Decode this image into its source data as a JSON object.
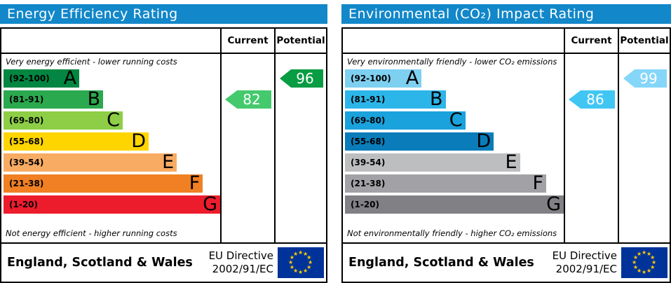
{
  "accent": {
    "header_bg": "#1287c9",
    "border": "#000000",
    "eu_flag_bg": "#003399",
    "eu_star_color": "#ffcc00"
  },
  "panels": [
    {
      "title": "Energy Efficiency Rating",
      "columns": {
        "current": "Current",
        "potential": "Potential"
      },
      "top_note": "Very energy efficient - lower running costs",
      "bottom_note": "Not energy efficient - higher running costs",
      "bands": [
        {
          "range": "(92-100)",
          "letter": "A",
          "color": "#028641",
          "width_pct": 35
        },
        {
          "range": "(81-91)",
          "letter": "B",
          "color": "#2ba94e",
          "width_pct": 46
        },
        {
          "range": "(69-80)",
          "letter": "C",
          "color": "#8dce46",
          "width_pct": 55
        },
        {
          "range": "(55-68)",
          "letter": "D",
          "color": "#ffd500",
          "width_pct": 67
        },
        {
          "range": "(39-54)",
          "letter": "E",
          "color": "#f8ab62",
          "width_pct": 80
        },
        {
          "range": "(21-38)",
          "letter": "F",
          "color": "#f08023",
          "width_pct": 92
        },
        {
          "range": "(1-20)",
          "letter": "G",
          "color": "#ed1c2d",
          "width_pct": 100
        }
      ],
      "current": {
        "value": "82",
        "band_index": 1,
        "color": "#44ca6d"
      },
      "potential": {
        "value": "96",
        "band_index": 0,
        "color": "#089c43"
      },
      "footer": {
        "region": "England, Scotland & Wales",
        "directive_line1": "EU Directive",
        "directive_line2": "2002/91/EC"
      }
    },
    {
      "title": "Environmental (CO₂) Impact Rating",
      "columns": {
        "current": "Current",
        "potential": "Potential"
      },
      "top_note": "Very environmentally friendly - lower CO₂ emissions",
      "bottom_note": "Not environmentally friendly - higher CO₂ emissions",
      "bands": [
        {
          "range": "(92-100)",
          "letter": "A",
          "color": "#7ed0f1",
          "width_pct": 35
        },
        {
          "range": "(81-91)",
          "letter": "B",
          "color": "#2cb5e9",
          "width_pct": 46
        },
        {
          "range": "(69-80)",
          "letter": "C",
          "color": "#19a2dc",
          "width_pct": 55
        },
        {
          "range": "(55-68)",
          "letter": "D",
          "color": "#0a7cba",
          "width_pct": 68
        },
        {
          "range": "(39-54)",
          "letter": "E",
          "color": "#bdbec0",
          "width_pct": 80
        },
        {
          "range": "(21-38)",
          "letter": "F",
          "color": "#a2a2a6",
          "width_pct": 92
        },
        {
          "range": "(1-20)",
          "letter": "G",
          "color": "#808085",
          "width_pct": 100
        }
      ],
      "current": {
        "value": "86",
        "band_index": 1,
        "color": "#41c6f3"
      },
      "potential": {
        "value": "99",
        "band_index": 0,
        "color": "#85d6f9"
      },
      "footer": {
        "region": "England, Scotland & Wales",
        "directive_line1": "EU Directive",
        "directive_line2": "2002/91/EC"
      }
    }
  ],
  "chart_data": [
    {
      "type": "bar",
      "title": "Energy Efficiency Rating",
      "categories": [
        "A (92-100)",
        "B (81-91)",
        "C (69-80)",
        "D (55-68)",
        "E (39-54)",
        "F (21-38)",
        "G (1-20)"
      ],
      "series": [
        {
          "name": "Current",
          "values": [
            82
          ],
          "band": "B"
        },
        {
          "name": "Potential",
          "values": [
            96
          ],
          "band": "A"
        }
      ],
      "scale_range": [
        1,
        100
      ],
      "annotations": [
        "Very energy efficient - lower running costs",
        "Not energy efficient - higher running costs",
        "England, Scotland & Wales",
        "EU Directive 2002/91/EC"
      ]
    },
    {
      "type": "bar",
      "title": "Environmental (CO₂) Impact Rating",
      "categories": [
        "A (92-100)",
        "B (81-91)",
        "C (69-80)",
        "D (55-68)",
        "E (39-54)",
        "F (21-38)",
        "G (1-20)"
      ],
      "series": [
        {
          "name": "Current",
          "values": [
            86
          ],
          "band": "B"
        },
        {
          "name": "Potential",
          "values": [
            99
          ],
          "band": "A"
        }
      ],
      "scale_range": [
        1,
        100
      ],
      "annotations": [
        "Very environmentally friendly - lower CO₂ emissions",
        "Not environmentally friendly - higher CO₂ emissions",
        "England, Scotland & Wales",
        "EU Directive 2002/91/EC"
      ]
    }
  ]
}
